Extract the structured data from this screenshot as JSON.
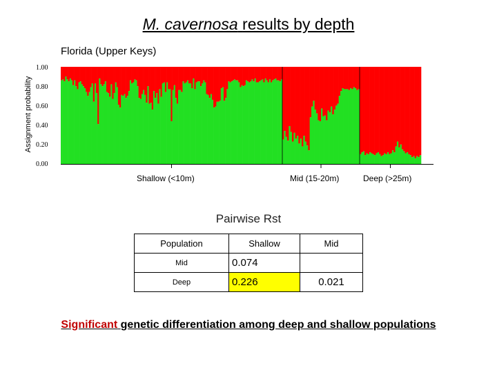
{
  "title": {
    "species": "M. cavernosa",
    "rest": "results by depth"
  },
  "region_label": "Florida (Upper Keys)",
  "chart_data": {
    "type": "bar",
    "stacked": true,
    "ylabel": "Assignment probability",
    "yticks": [
      "0.00",
      "0.20",
      "0.40",
      "0.60",
      "0.80",
      "1.00"
    ],
    "ylim": [
      0,
      1
    ],
    "colors": {
      "cluster1": "#22e022",
      "cluster2": "#ff0000",
      "divider": "#000000"
    },
    "groups": [
      {
        "label": "Shallow (<10m)",
        "values": [
          0.86,
          0.87,
          0.85,
          0.9,
          0.87,
          0.85,
          0.88,
          0.86,
          0.81,
          0.86,
          0.8,
          0.77,
          0.84,
          0.85,
          0.82,
          0.8,
          0.78,
          0.74,
          0.7,
          0.74,
          0.79,
          0.83,
          0.64,
          0.83,
          0.73,
          0.41,
          0.88,
          0.82,
          0.8,
          0.82,
          0.85,
          0.74,
          0.73,
          0.69,
          0.82,
          0.67,
          0.73,
          0.84,
          0.79,
          0.61,
          0.58,
          0.71,
          0.7,
          0.72,
          0.68,
          0.7,
          0.75,
          0.86,
          0.83,
          0.84,
          0.87,
          0.86,
          0.8,
          0.68,
          0.67,
          0.72,
          0.76,
          0.71,
          0.63,
          0.8,
          0.62,
          0.63,
          0.56,
          0.75,
          0.68,
          0.73,
          0.62,
          0.77,
          0.69,
          0.83,
          0.84,
          0.74,
          0.84,
          0.77,
          0.77,
          0.44,
          0.76,
          0.81,
          0.68,
          0.62,
          0.76,
          0.76,
          0.74,
          0.85,
          0.83,
          0.84,
          0.86,
          0.83,
          0.83,
          0.78,
          0.88,
          0.77,
          0.84,
          0.85,
          0.85,
          0.8,
          0.83,
          0.86,
          0.84,
          0.72,
          0.71,
          0.68,
          0.72,
          0.66,
          0.58,
          0.59,
          0.64,
          0.64,
          0.65,
          0.78,
          0.79,
          0.65,
          0.68,
          0.77,
          0.85,
          0.84,
          0.85,
          0.86,
          0.87,
          0.86,
          0.86,
          0.84,
          0.79,
          0.81,
          0.8,
          0.81,
          0.86,
          0.85,
          0.84,
          0.85,
          0.87,
          0.85,
          0.88,
          0.84,
          0.84,
          0.85,
          0.86,
          0.87,
          0.84,
          0.88,
          0.86,
          0.84,
          0.87,
          0.84,
          0.86,
          0.87,
          0.88,
          0.86,
          0.86,
          0.85,
          0.87
        ]
      },
      {
        "label": "Mid (15-20m)",
        "values": [
          0.25,
          0.34,
          0.28,
          0.24,
          0.39,
          0.33,
          0.23,
          0.32,
          0.26,
          0.29,
          0.21,
          0.26,
          0.18,
          0.29,
          0.23,
          0.19,
          0.14,
          0.48,
          0.59,
          0.65,
          0.56,
          0.52,
          0.45,
          0.44,
          0.57,
          0.49,
          0.5,
          0.45,
          0.55,
          0.53,
          0.59,
          0.51,
          0.56,
          0.6,
          0.62,
          0.7,
          0.75,
          0.78,
          0.77,
          0.77,
          0.77,
          0.76,
          0.78,
          0.77,
          0.79,
          0.78,
          0.76,
          0.77
        ]
      },
      {
        "label": "Deep (>25m)",
        "values": [
          0.1,
          0.12,
          0.13,
          0.09,
          0.11,
          0.1,
          0.12,
          0.11,
          0.1,
          0.09,
          0.11,
          0.12,
          0.1,
          0.08,
          0.09,
          0.11,
          0.1,
          0.12,
          0.1,
          0.11,
          0.14,
          0.12,
          0.18,
          0.23,
          0.17,
          0.2,
          0.15,
          0.13,
          0.11,
          0.12,
          0.1,
          0.09,
          0.07,
          0.08,
          0.06,
          0.08,
          0.07,
          0.09
        ]
      }
    ]
  },
  "table": {
    "title": "Pairwise Rst",
    "headers": [
      "Population",
      "Shallow",
      "Mid"
    ],
    "rows": [
      {
        "label": "Mid",
        "shallow": "0.074",
        "mid": ""
      },
      {
        "label": "Deep",
        "shallow": "0.226",
        "mid": "0.021"
      }
    ],
    "highlight_color": "#ffff00"
  },
  "conclusion": {
    "significant": "Significant",
    "rest": "genetic differentiation among deep and shallow populations"
  }
}
